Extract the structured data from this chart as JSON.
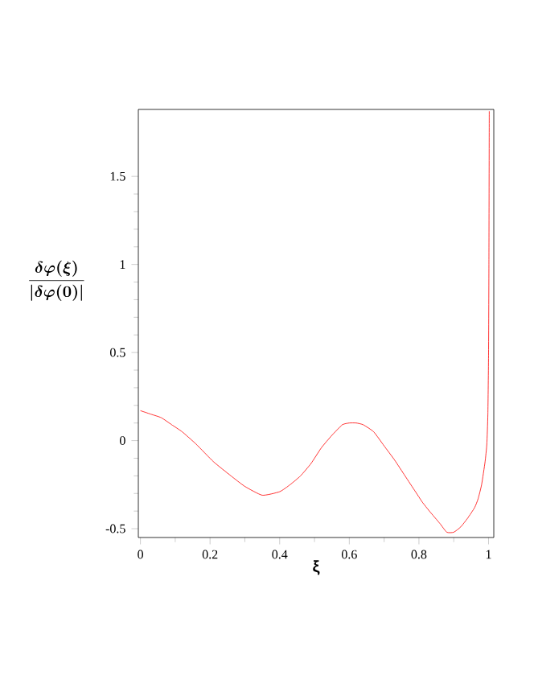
{
  "chart_data": {
    "type": "line",
    "xlabel": "ξ",
    "ylabel": "\\boldsymbol{\\frac{\\delta\\varphi(\\xi)}{|\\delta\\varphi(0)|}}",
    "xlim": [
      -0.006,
      1.015
    ],
    "ylim": [
      -0.55,
      1.88
    ],
    "xticks": [
      0,
      0.2,
      0.4,
      0.6,
      0.8,
      1
    ],
    "yticks": [
      -0.5,
      0,
      0.5,
      1,
      1.5
    ],
    "series": [
      {
        "color": "#ff0000",
        "x": [
          0,
          0.03,
          0.06,
          0.09,
          0.12,
          0.16,
          0.21,
          0.26,
          0.3,
          0.35,
          0.4,
          0.43,
          0.46,
          0.49,
          0.52,
          0.55,
          0.58,
          0.6,
          0.62,
          0.64,
          0.67,
          0.7,
          0.73,
          0.76,
          0.79,
          0.8,
          0.81,
          0.83,
          0.86,
          0.88,
          0.9,
          0.92,
          0.94,
          0.96,
          0.97,
          0.98,
          0.99,
          0.995,
          0.998,
          1.0,
          1.001,
          1.002
        ],
        "values": [
          0.17,
          0.15,
          0.13,
          0.09,
          0.05,
          -0.02,
          -0.12,
          -0.2,
          -0.26,
          -0.31,
          -0.29,
          -0.25,
          -0.2,
          -0.13,
          -0.04,
          0.03,
          0.09,
          0.1,
          0.1,
          0.09,
          0.05,
          -0.03,
          -0.11,
          -0.2,
          -0.29,
          -0.32,
          -0.35,
          -0.4,
          -0.47,
          -0.52,
          -0.52,
          -0.49,
          -0.44,
          -0.38,
          -0.33,
          -0.25,
          -0.12,
          -0.02,
          0.15,
          0.5,
          1.0,
          1.87
        ]
      }
    ]
  }
}
